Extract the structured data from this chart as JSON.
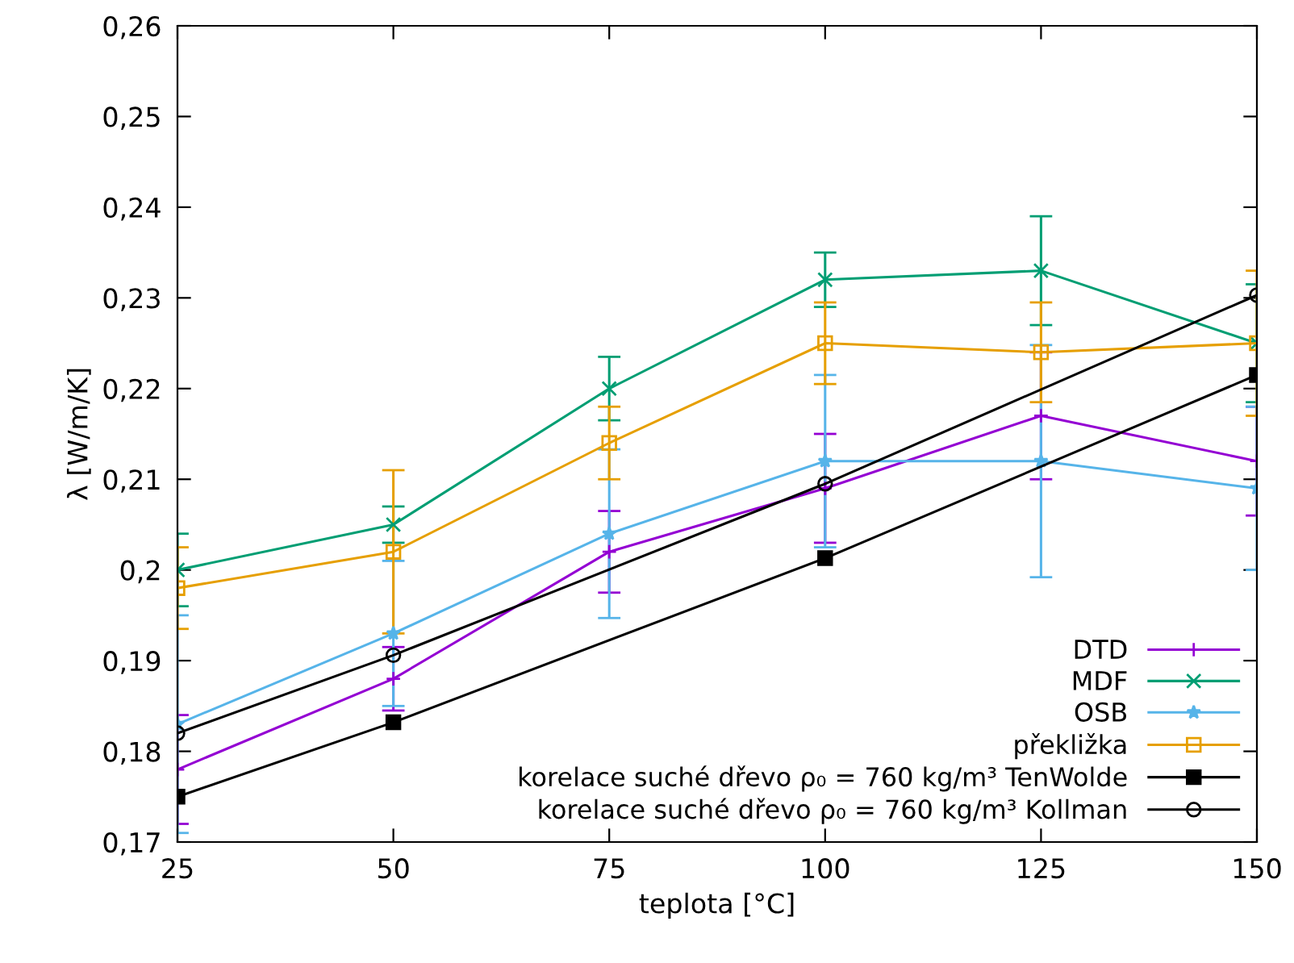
{
  "chart_data": {
    "type": "line",
    "xlabel": "teplota [°C]",
    "ylabel": "λ [W/m/K]",
    "xlim": [
      25,
      150
    ],
    "ylim": [
      0.17,
      0.26
    ],
    "xticks": [
      25,
      50,
      75,
      100,
      125,
      150
    ],
    "yticks": [
      {
        "value": 0.17,
        "label": "0,17"
      },
      {
        "value": 0.18,
        "label": "0,18"
      },
      {
        "value": 0.19,
        "label": "0,19"
      },
      {
        "value": 0.2,
        "label": "0,2"
      },
      {
        "value": 0.21,
        "label": "0,21"
      },
      {
        "value": 0.22,
        "label": "0,22"
      },
      {
        "value": 0.23,
        "label": "0,23"
      },
      {
        "value": 0.24,
        "label": "0,24"
      },
      {
        "value": 0.25,
        "label": "0,25"
      },
      {
        "value": 0.26,
        "label": "0,26"
      }
    ],
    "grid": false,
    "legend": "bottom right",
    "x": [
      25,
      50,
      75,
      100,
      125,
      150
    ],
    "series": [
      {
        "name": "DTD",
        "color": "#9400d3",
        "marker": "plus",
        "values": [
          0.178,
          0.188,
          0.202,
          0.209,
          0.217,
          0.212
        ],
        "errors": [
          0.006,
          0.0035,
          0.0045,
          0.006,
          0.007,
          0.006
        ]
      },
      {
        "name": "MDF",
        "color": "#009e73",
        "marker": "cross",
        "values": [
          0.2,
          0.205,
          0.22,
          0.232,
          0.233,
          0.225
        ],
        "errors": [
          0.004,
          0.002,
          0.0035,
          0.003,
          0.006,
          0.0065
        ]
      },
      {
        "name": "OSB",
        "color": "#56b4e9",
        "marker": "star",
        "values": [
          0.183,
          0.193,
          0.204,
          0.212,
          0.212,
          0.209
        ],
        "errors": [
          0.012,
          0.008,
          0.0093,
          0.0095,
          0.0128,
          0.009
        ]
      },
      {
        "name": "překližka",
        "color": "#e69f00",
        "marker": "square_open",
        "values": [
          0.198,
          0.202,
          0.214,
          0.225,
          0.224,
          0.225
        ],
        "errors": [
          0.0045,
          0.009,
          0.004,
          0.0045,
          0.0055,
          0.008
        ]
      },
      {
        "name": "korelace suché dřevo ρ₀ = 760 kg/m³ TenWolde",
        "color": "#000000",
        "marker": "square",
        "x": [
          25,
          50,
          100,
          150
        ],
        "values": [
          0.175,
          0.1832,
          0.2013,
          0.2215
        ]
      },
      {
        "name": "korelace suché dřevo ρ₀ = 760 kg/m³ Kollman",
        "color": "#000000",
        "marker": "circle_open",
        "x": [
          25,
          50,
          100,
          150
        ],
        "values": [
          0.182,
          0.1906,
          0.2095,
          0.2303
        ]
      }
    ]
  }
}
